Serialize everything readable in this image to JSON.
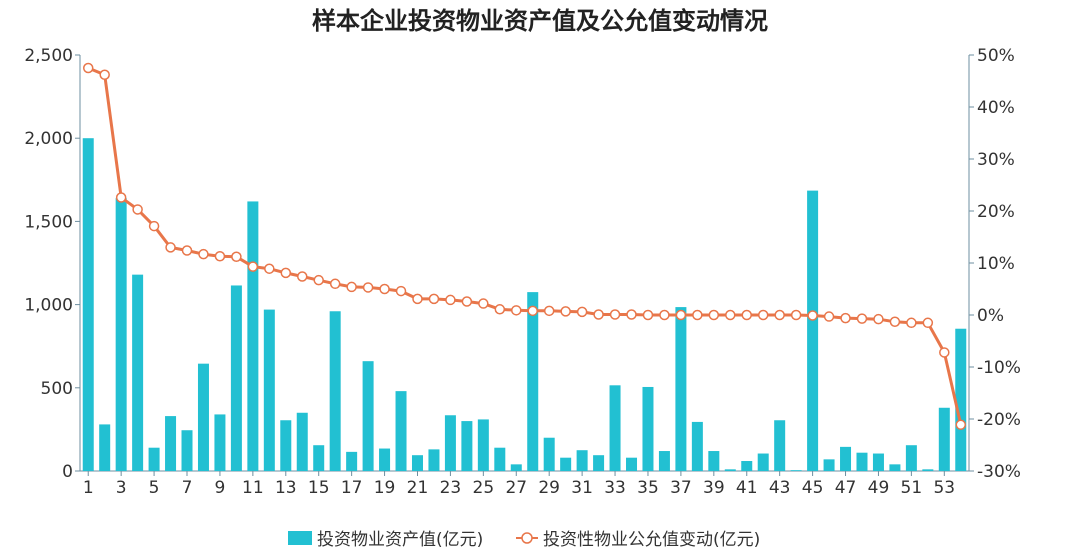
{
  "chart_data": {
    "type": "bar",
    "title": "样本企业投资物业资产值及公允值变动情况",
    "colors": {
      "bar": "#22c0d2",
      "line": "#e8764a",
      "axis": "#6e8fa0"
    },
    "x": [
      1,
      2,
      3,
      4,
      5,
      6,
      7,
      8,
      9,
      10,
      11,
      12,
      13,
      14,
      15,
      16,
      17,
      18,
      19,
      20,
      21,
      22,
      23,
      24,
      25,
      26,
      27,
      28,
      29,
      30,
      31,
      32,
      33,
      34,
      35,
      36,
      37,
      38,
      39,
      40,
      41,
      42,
      43,
      44,
      45,
      46,
      47,
      48,
      49,
      50,
      51,
      52,
      53,
      54
    ],
    "x_tick_labels": [
      "1",
      "3",
      "5",
      "7",
      "9",
      "11",
      "13",
      "15",
      "17",
      "19",
      "21",
      "23",
      "25",
      "27",
      "29",
      "31",
      "33",
      "35",
      "37",
      "39",
      "41",
      "43",
      "45",
      "47",
      "49",
      "51",
      "53"
    ],
    "y_left": {
      "ylim": [
        0,
        2500
      ],
      "ticks": [
        "0",
        "500",
        "1,000",
        "1,500",
        "2,000",
        "2,500"
      ]
    },
    "y_right": {
      "ylim": [
        -30,
        50
      ],
      "ticks": [
        "-30%",
        "-20%",
        "-10%",
        "0%",
        "10%",
        "20%",
        "30%",
        "40%",
        "50%"
      ]
    },
    "legend": {
      "position": "bottom-center"
    },
    "series": [
      {
        "name": "投资物业资产值(亿元)",
        "type": "bar",
        "axis": "left",
        "values": [
          2000,
          280,
          1640,
          1180,
          140,
          330,
          245,
          645,
          340,
          1115,
          1620,
          970,
          305,
          350,
          155,
          960,
          115,
          660,
          135,
          480,
          95,
          130,
          335,
          300,
          310,
          140,
          40,
          1075,
          200,
          80,
          125,
          95,
          515,
          80,
          505,
          120,
          985,
          295,
          120,
          10,
          60,
          105,
          305,
          5,
          1685,
          70,
          145,
          110,
          105,
          40,
          155,
          10,
          380,
          855
        ]
      },
      {
        "name": "投资性物业公允值变动(亿元)",
        "type": "line",
        "axis": "right",
        "values": [
          47.5,
          46.2,
          22.6,
          20.3,
          17.1,
          13.0,
          12.4,
          11.7,
          11.3,
          11.2,
          9.3,
          8.9,
          8.1,
          7.4,
          6.7,
          6.0,
          5.4,
          5.3,
          5.0,
          4.6,
          3.1,
          3.1,
          2.9,
          2.6,
          2.2,
          1.1,
          0.9,
          0.8,
          0.8,
          0.7,
          0.6,
          0.1,
          0.1,
          0.1,
          0.0,
          0.0,
          0.0,
          0.0,
          0.0,
          0.0,
          0.0,
          0.0,
          0.0,
          0.0,
          -0.1,
          -0.3,
          -0.6,
          -0.7,
          -0.8,
          -1.3,
          -1.5,
          -1.5,
          -7.2,
          -21.1
        ]
      }
    ]
  }
}
